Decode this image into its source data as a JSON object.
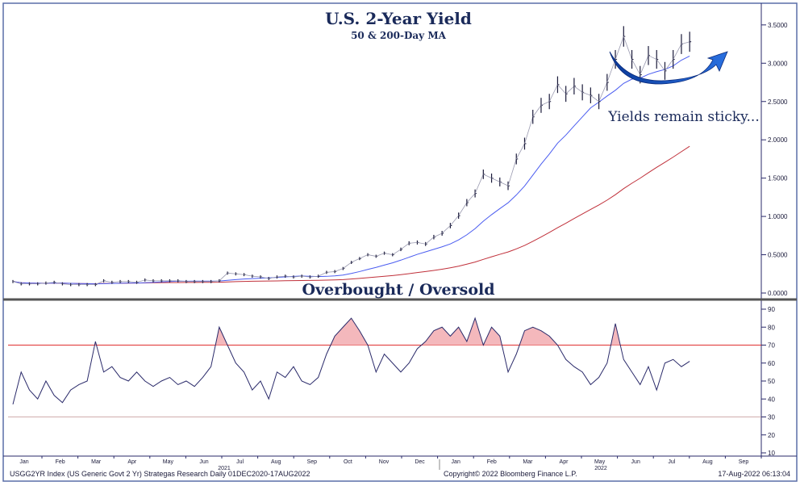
{
  "chart_data": [
    {
      "type": "line",
      "title": "U.S. 2-Year Yield",
      "subtitle": "50 & 200-Day MA",
      "ylabel": "",
      "ylim": [
        0,
        3.6
      ],
      "yticks": [
        "0.0000",
        "0.5000",
        "1.0000",
        "1.5000",
        "2.0000",
        "2.5000",
        "3.0000",
        "3.5000"
      ],
      "annotation": "Yields remain sticky...",
      "x_resolution": "weekly",
      "start": "Dec 2020",
      "series": [
        {
          "name": "USGG2YR",
          "color": "#1a1a3a",
          "values": [
            0.15,
            0.12,
            0.12,
            0.12,
            0.13,
            0.14,
            0.12,
            0.11,
            0.11,
            0.11,
            0.11,
            0.16,
            0.14,
            0.15,
            0.15,
            0.14,
            0.17,
            0.16,
            0.16,
            0.16,
            0.16,
            0.15,
            0.15,
            0.15,
            0.15,
            0.16,
            0.26,
            0.25,
            0.24,
            0.22,
            0.21,
            0.19,
            0.21,
            0.22,
            0.21,
            0.22,
            0.21,
            0.22,
            0.27,
            0.28,
            0.32,
            0.4,
            0.45,
            0.5,
            0.48,
            0.52,
            0.5,
            0.57,
            0.65,
            0.66,
            0.64,
            0.73,
            0.78,
            0.88,
            1.01,
            1.18,
            1.3,
            1.55,
            1.5,
            1.45,
            1.4,
            1.75,
            1.95,
            2.3,
            2.45,
            2.5,
            2.72,
            2.6,
            2.7,
            2.62,
            2.58,
            2.5,
            2.75,
            3.05,
            3.35,
            3.05,
            2.85,
            3.1,
            3.05,
            2.9,
            3.05,
            3.25,
            3.28
          ]
        },
        {
          "name": "50-Day MA",
          "color": "#4a5cf0",
          "window_weeks": 10
        },
        {
          "name": "200-Day MA",
          "color": "#c0303a",
          "window_weeks": 40
        }
      ]
    },
    {
      "type": "line",
      "title": "Overbought / Oversold",
      "ylim": [
        5,
        95
      ],
      "yticks": [
        "10",
        "20",
        "30",
        "40",
        "50",
        "60",
        "70",
        "80",
        "90"
      ],
      "overbought": 70,
      "oversold": 30,
      "series": [
        {
          "name": "RSI",
          "color": "#2a2a6a",
          "values": [
            37,
            55,
            45,
            40,
            50,
            42,
            38,
            45,
            48,
            50,
            72,
            55,
            58,
            52,
            50,
            55,
            50,
            47,
            50,
            52,
            48,
            50,
            47,
            52,
            58,
            80,
            70,
            60,
            55,
            45,
            50,
            40,
            55,
            52,
            58,
            50,
            48,
            52,
            65,
            75,
            80,
            85,
            78,
            70,
            55,
            65,
            60,
            55,
            60,
            68,
            72,
            78,
            80,
            75,
            80,
            72,
            85,
            70,
            80,
            75,
            55,
            65,
            78,
            80,
            78,
            75,
            70,
            62,
            58,
            55,
            48,
            52,
            60,
            82,
            62,
            55,
            48,
            58,
            45,
            60,
            62,
            58,
            61
          ]
        }
      ]
    }
  ],
  "x_axis": {
    "months": [
      "Jan",
      "Feb",
      "Mar",
      "Apr",
      "May",
      "Jun",
      "Jul",
      "Aug",
      "Sep",
      "Oct",
      "Nov",
      "Dec",
      "Jan",
      "Feb",
      "Mar",
      "Apr",
      "May",
      "Jun",
      "Jul",
      "Aug",
      "Sep"
    ],
    "years": [
      "2021",
      "2022"
    ]
  },
  "footer": {
    "left": "USGG2YR Index (US Generic Govt 2 Yr) Strategas Research  Daily 01DEC2020-17AUG2022",
    "center": "Copyright© 2022 Bloomberg Finance L.P.",
    "right": "17-Aug-2022 06:13:04"
  }
}
